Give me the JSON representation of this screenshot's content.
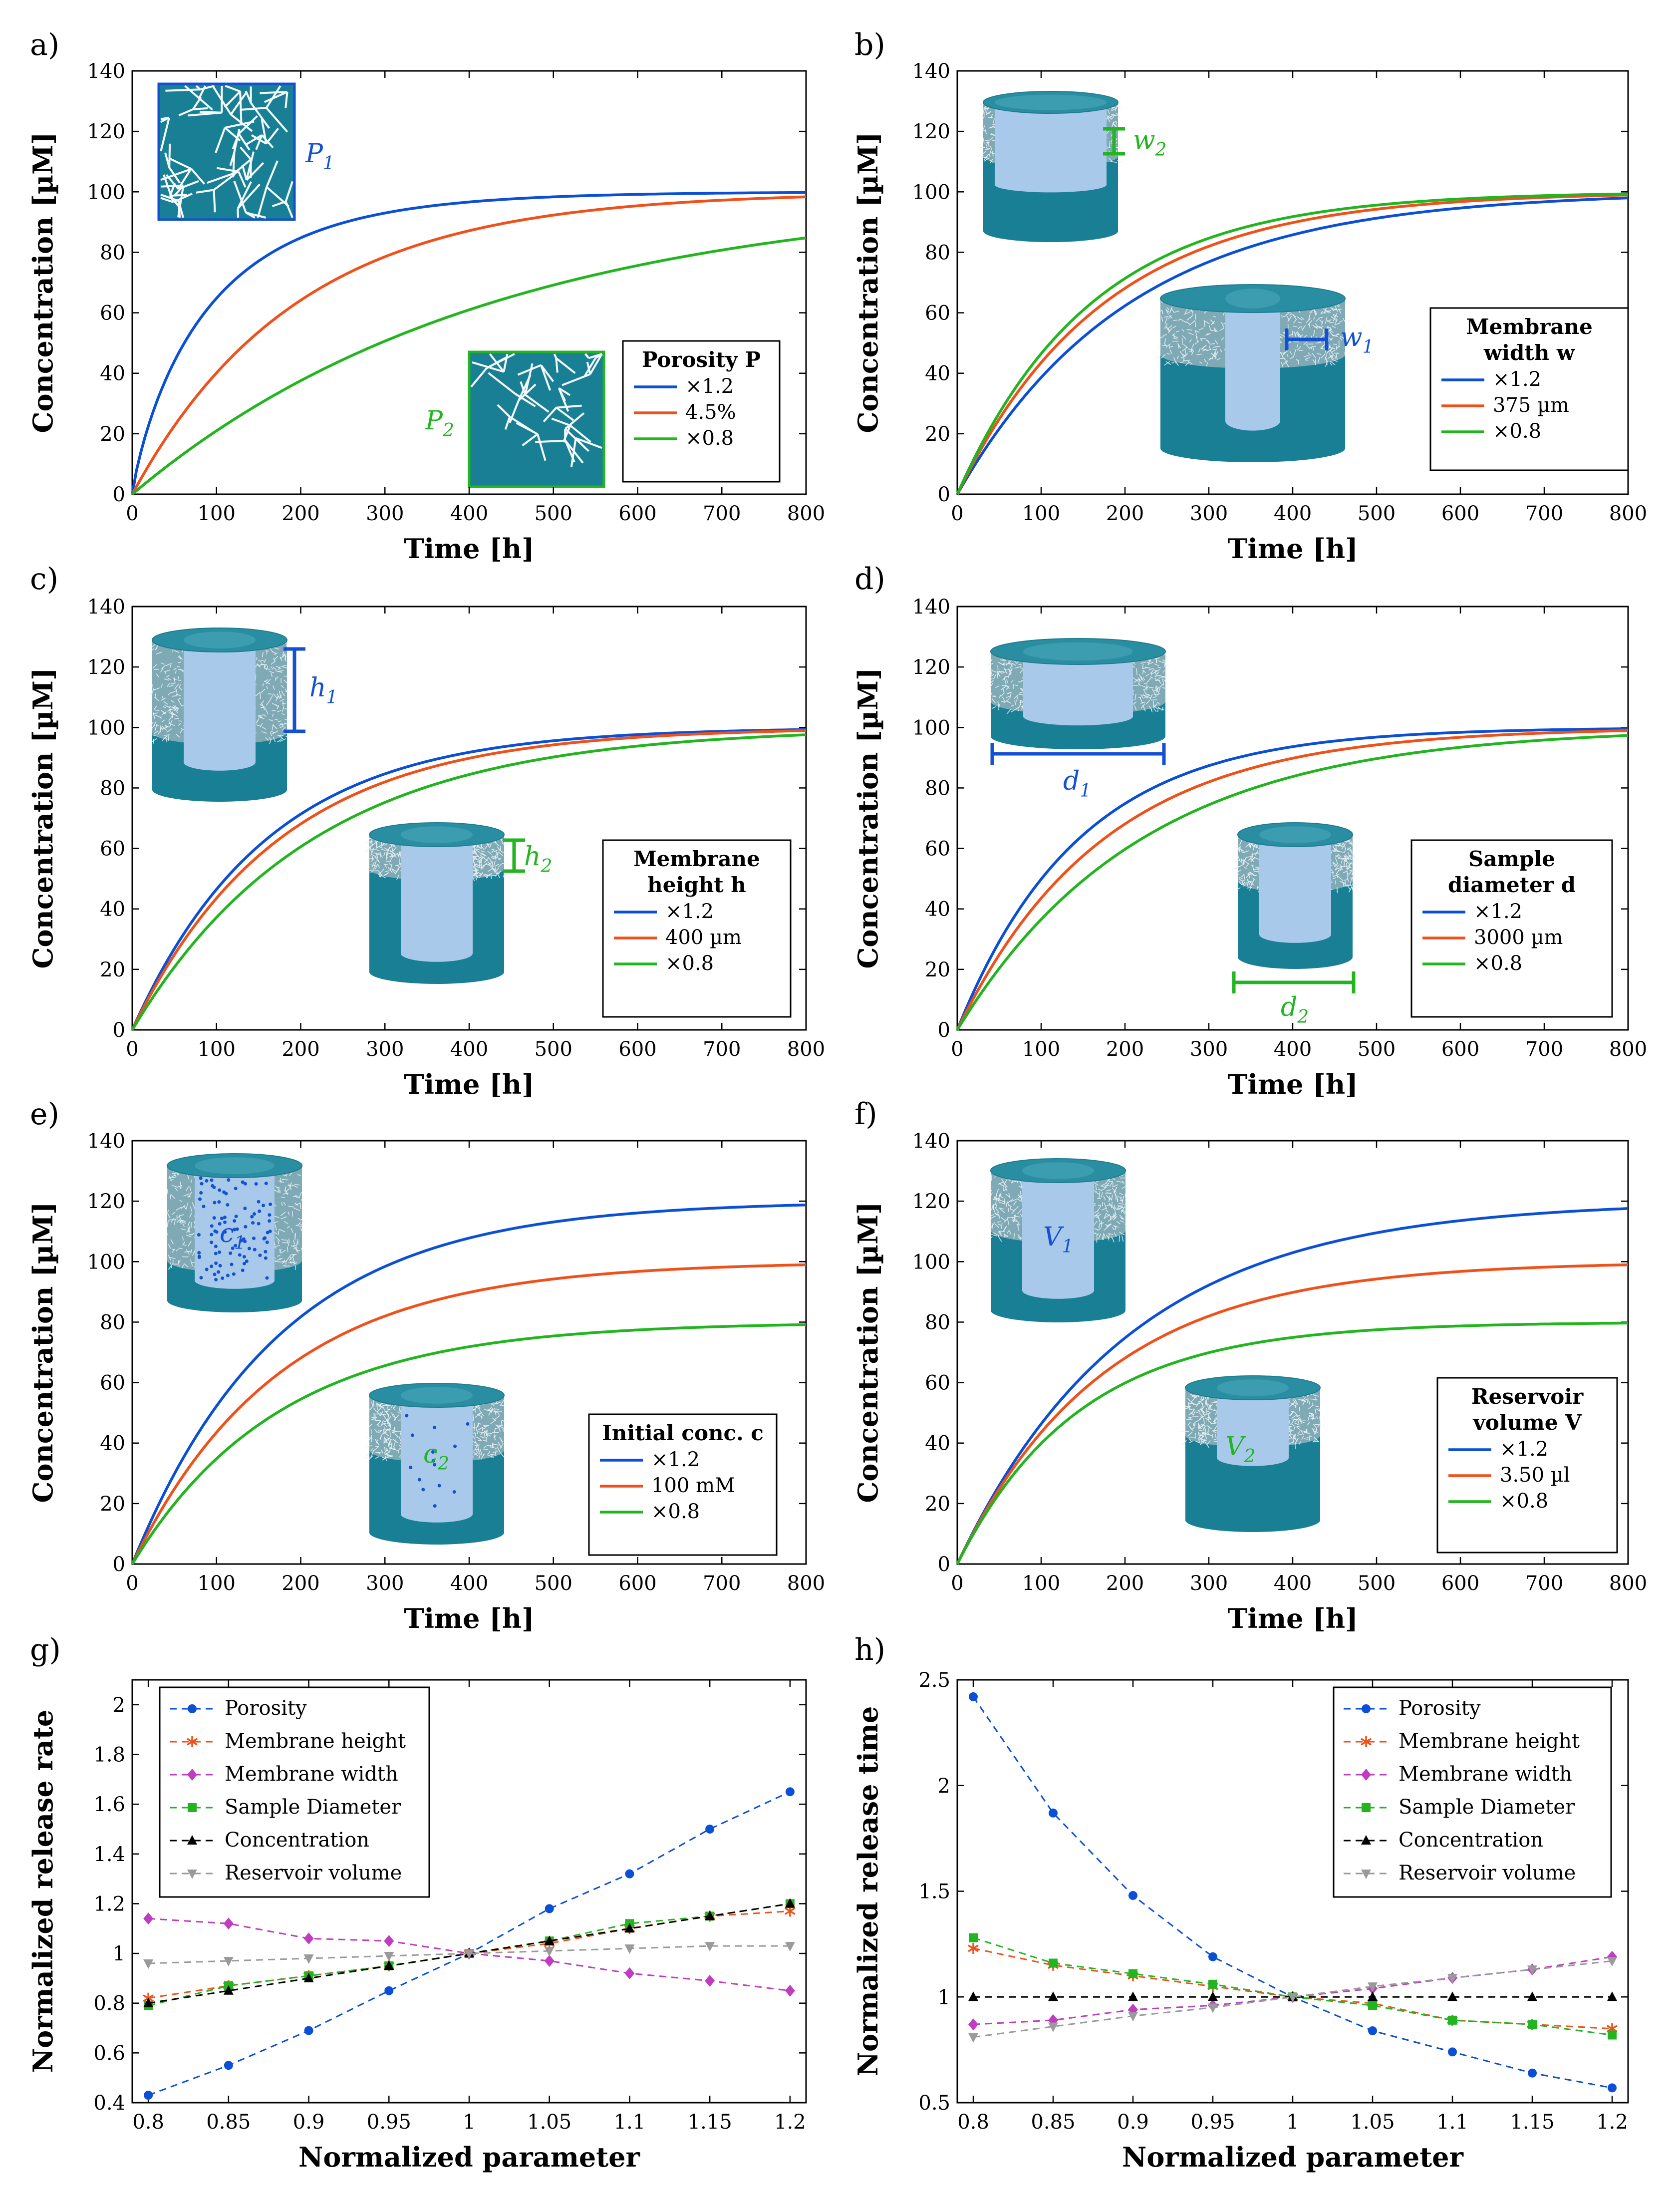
{
  "colors": {
    "blue": "#0a4fd6",
    "orange": "#f0501a",
    "green": "#22b520",
    "teal": "#197f94",
    "teal_dark": "#0d6a7e",
    "core": "#a9c9ea",
    "magenta": "#c03cc0",
    "black": "#000000",
    "gray": "#9a9a9a",
    "inset_green": "#22b520",
    "inset_blue": "#1451d2"
  },
  "chart_data": [
    {
      "id": "a",
      "type": "line",
      "panel_label": "a)",
      "xlabel": "Time [h]",
      "ylabel": "Concentration [µM]",
      "xlim": [
        0,
        800
      ],
      "ylim": [
        0,
        140
      ],
      "xticks": [
        0,
        100,
        200,
        300,
        400,
        500,
        600,
        700,
        800
      ],
      "yticks": [
        0,
        20,
        40,
        60,
        80,
        100,
        120,
        140
      ],
      "legend_title": [
        "Porosity P"
      ],
      "legend_entries": [
        "×1.2",
        "4.5%",
        "×0.8"
      ],
      "series": [
        {
          "name": "×1.2",
          "color": "blue",
          "final": 100,
          "tau": 95,
          "shape": 0.85
        },
        {
          "name": "4.5%",
          "color": "orange",
          "final": 100,
          "tau": 195,
          "shape": 1.0
        },
        {
          "name": "×0.8",
          "color": "green",
          "final": 100,
          "tau": 425,
          "shape": 1.0
        }
      ],
      "insets": [
        "P1",
        "P2"
      ]
    },
    {
      "id": "b",
      "type": "line",
      "panel_label": "b)",
      "xlabel": "Time [h]",
      "ylabel": "Concentration [µM]",
      "xlim": [
        0,
        800
      ],
      "ylim": [
        0,
        140
      ],
      "xticks": [
        0,
        100,
        200,
        300,
        400,
        500,
        600,
        700,
        800
      ],
      "yticks": [
        0,
        20,
        40,
        60,
        80,
        100,
        120,
        140
      ],
      "legend_title": [
        "Membrane",
        "width w"
      ],
      "legend_entries": [
        "×1.2",
        "375 µm",
        "×0.8"
      ],
      "series": [
        {
          "name": "×1.2",
          "color": "blue",
          "final": 100,
          "tau": 205,
          "shape": 1.0
        },
        {
          "name": "375 µm",
          "color": "orange",
          "final": 100,
          "tau": 175,
          "shape": 1.0
        },
        {
          "name": "×0.8",
          "color": "green",
          "final": 100,
          "tau": 160,
          "shape": 1.0
        }
      ],
      "insets": [
        "w2",
        "w1"
      ]
    },
    {
      "id": "c",
      "type": "line",
      "panel_label": "c)",
      "xlabel": "Time [h]",
      "ylabel": "Concentration [µM]",
      "xlim": [
        0,
        800
      ],
      "ylim": [
        0,
        140
      ],
      "xticks": [
        0,
        100,
        200,
        300,
        400,
        500,
        600,
        700,
        800
      ],
      "yticks": [
        0,
        20,
        40,
        60,
        80,
        100,
        120,
        140
      ],
      "legend_title": [
        "Membrane",
        "height h"
      ],
      "legend_entries": [
        "×1.2",
        "400 µm",
        "×0.8"
      ],
      "series": [
        {
          "name": "×1.2",
          "color": "blue",
          "final": 100,
          "tau": 160,
          "shape": 1.0
        },
        {
          "name": "400 µm",
          "color": "orange",
          "final": 100,
          "tau": 175,
          "shape": 1.0
        },
        {
          "name": "×0.8",
          "color": "green",
          "final": 100,
          "tau": 215,
          "shape": 1.0
        }
      ],
      "insets": [
        "h1",
        "h2"
      ]
    },
    {
      "id": "d",
      "type": "line",
      "panel_label": "d)",
      "xlabel": "Time [h]",
      "ylabel": "Concentration [µM]",
      "xlim": [
        0,
        800
      ],
      "ylim": [
        0,
        140
      ],
      "xticks": [
        0,
        100,
        200,
        300,
        400,
        500,
        600,
        700,
        800
      ],
      "yticks": [
        0,
        20,
        40,
        60,
        80,
        100,
        120,
        140
      ],
      "legend_title": [
        "Sample",
        "diameter d"
      ],
      "legend_entries": [
        "×1.2",
        "3000 µm",
        "×0.8"
      ],
      "series": [
        {
          "name": "×1.2",
          "color": "blue",
          "final": 100,
          "tau": 145,
          "shape": 1.0
        },
        {
          "name": "3000 µm",
          "color": "orange",
          "final": 100,
          "tau": 175,
          "shape": 1.0
        },
        {
          "name": "×0.8",
          "color": "green",
          "final": 100,
          "tau": 220,
          "shape": 1.0
        }
      ],
      "insets": [
        "d1",
        "d2"
      ]
    },
    {
      "id": "e",
      "type": "line",
      "panel_label": "e)",
      "xlabel": "Time [h]",
      "ylabel": "Concentration [µM]",
      "xlim": [
        0,
        800
      ],
      "ylim": [
        0,
        140
      ],
      "xticks": [
        0,
        100,
        200,
        300,
        400,
        500,
        600,
        700,
        800
      ],
      "yticks": [
        0,
        20,
        40,
        60,
        80,
        100,
        120,
        140
      ],
      "legend_title": [
        "Initial conc. c"
      ],
      "legend_entries": [
        "×1.2",
        "100 mM",
        "×0.8"
      ],
      "series": [
        {
          "name": "×1.2",
          "color": "blue",
          "final": 120,
          "tau": 175,
          "shape": 1.0
        },
        {
          "name": "100 mM",
          "color": "orange",
          "final": 100,
          "tau": 175,
          "shape": 1.0
        },
        {
          "name": "×0.8",
          "color": "green",
          "final": 80,
          "tau": 175,
          "shape": 1.0
        }
      ],
      "insets": [
        "c1",
        "c2"
      ]
    },
    {
      "id": "f",
      "type": "line",
      "panel_label": "f)",
      "xlabel": "Time [h]",
      "ylabel": "Concentration [µM]",
      "xlim": [
        0,
        800
      ],
      "ylim": [
        0,
        140
      ],
      "xticks": [
        0,
        100,
        200,
        300,
        400,
        500,
        600,
        700,
        800
      ],
      "yticks": [
        0,
        20,
        40,
        60,
        80,
        100,
        120,
        140
      ],
      "legend_title": [
        "Reservoir",
        "volume V"
      ],
      "legend_entries": [
        "×1.2",
        "3.50 µl",
        "×0.8"
      ],
      "series": [
        {
          "name": "×1.2",
          "color": "blue",
          "final": 120,
          "tau": 205,
          "shape": 1.0
        },
        {
          "name": "3.50 µl",
          "color": "orange",
          "final": 100,
          "tau": 175,
          "shape": 1.0
        },
        {
          "name": "×0.8",
          "color": "green",
          "final": 80,
          "tau": 145,
          "shape": 1.0
        }
      ],
      "insets": [
        "V1",
        "V2"
      ]
    },
    {
      "id": "g",
      "type": "scatter-line",
      "panel_label": "g)",
      "xlabel": "Normalized parameter",
      "ylabel": "Normalized release rate",
      "xlim": [
        0.79,
        1.21
      ],
      "ylim": [
        0.4,
        2.1
      ],
      "xticks": [
        0.8,
        0.85,
        0.9,
        0.95,
        1,
        1.05,
        1.1,
        1.15,
        1.2
      ],
      "yticks": [
        0.4,
        0.6,
        0.8,
        1,
        1.2,
        1.4,
        1.6,
        1.8,
        2
      ],
      "x": [
        0.8,
        0.85,
        0.9,
        0.95,
        1,
        1.05,
        1.1,
        1.15,
        1.2
      ],
      "series": [
        {
          "name": "Porosity",
          "color": "blue",
          "marker": "circle",
          "values": [
            0.43,
            0.55,
            0.69,
            0.85,
            1.0,
            1.18,
            1.32,
            1.5,
            1.65
          ]
        },
        {
          "name": "Membrane height",
          "color": "orange",
          "marker": "asterisk",
          "values": [
            0.82,
            0.87,
            0.91,
            0.95,
            1.0,
            1.04,
            1.1,
            1.15,
            1.17
          ]
        },
        {
          "name": "Membrane width",
          "color": "magenta",
          "marker": "diamond",
          "values": [
            1.14,
            1.12,
            1.06,
            1.05,
            1.0,
            0.97,
            0.92,
            0.89,
            0.85
          ]
        },
        {
          "name": "Sample Diameter",
          "color": "green",
          "marker": "square",
          "values": [
            0.79,
            0.87,
            0.91,
            0.95,
            1.0,
            1.05,
            1.12,
            1.15,
            1.2
          ]
        },
        {
          "name": "Concentration",
          "color": "black",
          "marker": "triangle-up",
          "values": [
            0.8,
            0.85,
            0.9,
            0.95,
            1.0,
            1.05,
            1.1,
            1.15,
            1.2
          ]
        },
        {
          "name": "Reservoir volume",
          "color": "gray",
          "marker": "triangle-down",
          "values": [
            0.96,
            0.97,
            0.98,
            0.99,
            1.0,
            1.01,
            1.02,
            1.03,
            1.03
          ]
        }
      ]
    },
    {
      "id": "h",
      "type": "scatter-line",
      "panel_label": "h)",
      "xlabel": "Normalized parameter",
      "ylabel": "Normalized release time",
      "xlim": [
        0.79,
        1.21
      ],
      "ylim": [
        0.5,
        2.5
      ],
      "xticks": [
        0.8,
        0.85,
        0.9,
        0.95,
        1,
        1.05,
        1.1,
        1.15,
        1.2
      ],
      "yticks": [
        0.5,
        1,
        1.5,
        2,
        2.5
      ],
      "x": [
        0.8,
        0.85,
        0.9,
        0.95,
        1,
        1.05,
        1.1,
        1.15,
        1.2
      ],
      "series": [
        {
          "name": "Porosity",
          "color": "blue",
          "marker": "circle",
          "values": [
            2.42,
            1.87,
            1.48,
            1.19,
            1.0,
            0.84,
            0.74,
            0.64,
            0.57
          ]
        },
        {
          "name": "Membrane height",
          "color": "orange",
          "marker": "asterisk",
          "values": [
            1.23,
            1.15,
            1.1,
            1.05,
            1.0,
            0.97,
            0.89,
            0.87,
            0.85
          ]
        },
        {
          "name": "Membrane width",
          "color": "magenta",
          "marker": "diamond",
          "values": [
            0.87,
            0.89,
            0.94,
            0.96,
            1.0,
            1.04,
            1.09,
            1.13,
            1.19
          ]
        },
        {
          "name": "Sample Diameter",
          "color": "green",
          "marker": "square",
          "values": [
            1.28,
            1.16,
            1.11,
            1.06,
            1.0,
            0.96,
            0.89,
            0.87,
            0.82
          ]
        },
        {
          "name": "Concentration",
          "color": "black",
          "marker": "triangle-up",
          "values": [
            1.0,
            1.0,
            1.0,
            1.0,
            1.0,
            1.0,
            1.0,
            1.0,
            1.0
          ]
        },
        {
          "name": "Reservoir volume",
          "color": "gray",
          "marker": "triangle-down",
          "values": [
            0.81,
            0.86,
            0.91,
            0.95,
            1.0,
            1.05,
            1.09,
            1.13,
            1.17
          ]
        }
      ]
    }
  ]
}
